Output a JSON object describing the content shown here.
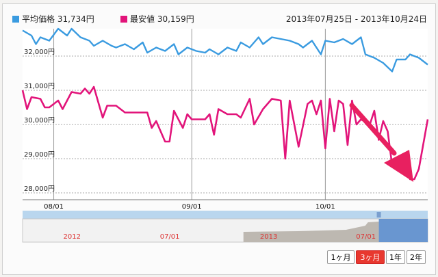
{
  "legend": [
    {
      "label": "平均価格 31,734円",
      "color": "#3a9be0"
    },
    {
      "label": "最安値 30,159円",
      "color": "#e2147a"
    }
  ],
  "date_range": "2013年07月25日 - 2013年10月24日",
  "range_buttons": [
    {
      "label": "1ヶ月",
      "active": false
    },
    {
      "label": "3ヶ月",
      "active": true
    },
    {
      "label": "1年",
      "active": false
    },
    {
      "label": "2年",
      "active": false
    }
  ],
  "annotation_color": "#e82060",
  "chart_data": {
    "type": "line",
    "ylim": [
      27800,
      32800
    ],
    "xlim": [
      "2013-07-25",
      "2013-10-24"
    ],
    "yticks": [
      {
        "value": 32000,
        "label": "32,000円"
      },
      {
        "value": 31000,
        "label": "31,000円"
      },
      {
        "value": 30000,
        "label": "30,000円"
      },
      {
        "value": 29000,
        "label": "29,000円"
      },
      {
        "value": 28000,
        "label": "28,000円"
      }
    ],
    "xticks": [
      {
        "date": "2013-08-01",
        "label": "08/01"
      },
      {
        "date": "2013-09-01",
        "label": "09/01"
      },
      {
        "date": "2013-10-01",
        "label": "10/01"
      }
    ],
    "grid": true,
    "series": [
      {
        "name": "平均価格",
        "color": "#3a9be0",
        "points": [
          [
            "2013-07-25",
            32750
          ],
          [
            "2013-07-27",
            32600
          ],
          [
            "2013-07-28",
            32350
          ],
          [
            "2013-07-29",
            32550
          ],
          [
            "2013-07-31",
            32450
          ],
          [
            "2013-08-02",
            32800
          ],
          [
            "2013-08-04",
            32600
          ],
          [
            "2013-08-05",
            32800
          ],
          [
            "2013-08-07",
            32550
          ],
          [
            "2013-08-09",
            32450
          ],
          [
            "2013-08-10",
            32300
          ],
          [
            "2013-08-12",
            32450
          ],
          [
            "2013-08-14",
            32300
          ],
          [
            "2013-08-15",
            32250
          ],
          [
            "2013-08-17",
            32350
          ],
          [
            "2013-08-19",
            32200
          ],
          [
            "2013-08-21",
            32400
          ],
          [
            "2013-08-22",
            32100
          ],
          [
            "2013-08-24",
            32250
          ],
          [
            "2013-08-26",
            32150
          ],
          [
            "2013-08-28",
            32350
          ],
          [
            "2013-08-29",
            32050
          ],
          [
            "2013-08-31",
            32250
          ],
          [
            "2013-09-02",
            32150
          ],
          [
            "2013-09-04",
            32100
          ],
          [
            "2013-09-05",
            32200
          ],
          [
            "2013-09-07",
            32050
          ],
          [
            "2013-09-09",
            32250
          ],
          [
            "2013-09-11",
            32150
          ],
          [
            "2013-09-12",
            32400
          ],
          [
            "2013-09-14",
            32250
          ],
          [
            "2013-09-16",
            32550
          ],
          [
            "2013-09-17",
            32350
          ],
          [
            "2013-09-19",
            32550
          ],
          [
            "2013-09-21",
            32500
          ],
          [
            "2013-09-23",
            32450
          ],
          [
            "2013-09-25",
            32350
          ],
          [
            "2013-09-26",
            32250
          ],
          [
            "2013-09-28",
            32450
          ],
          [
            "2013-09-30",
            32050
          ],
          [
            "2013-10-01",
            32450
          ],
          [
            "2013-10-03",
            32400
          ],
          [
            "2013-10-05",
            32500
          ],
          [
            "2013-10-07",
            32350
          ],
          [
            "2013-10-09",
            32550
          ],
          [
            "2013-10-10",
            32050
          ],
          [
            "2013-10-12",
            31950
          ],
          [
            "2013-10-14",
            31800
          ],
          [
            "2013-10-16",
            31550
          ],
          [
            "2013-10-17",
            31900
          ],
          [
            "2013-10-19",
            31900
          ],
          [
            "2013-10-20",
            32050
          ],
          [
            "2013-10-22",
            31950
          ],
          [
            "2013-10-24",
            31750
          ]
        ]
      },
      {
        "name": "最安値",
        "color": "#e2147a",
        "points": [
          [
            "2013-07-25",
            31000
          ],
          [
            "2013-07-26",
            30450
          ],
          [
            "2013-07-27",
            30800
          ],
          [
            "2013-07-29",
            30750
          ],
          [
            "2013-07-30",
            30500
          ],
          [
            "2013-07-31",
            30500
          ],
          [
            "2013-08-02",
            30700
          ],
          [
            "2013-08-03",
            30450
          ],
          [
            "2013-08-05",
            30950
          ],
          [
            "2013-08-07",
            30900
          ],
          [
            "2013-08-08",
            31050
          ],
          [
            "2013-08-09",
            30900
          ],
          [
            "2013-08-10",
            31100
          ],
          [
            "2013-08-12",
            30200
          ],
          [
            "2013-08-13",
            30550
          ],
          [
            "2013-08-15",
            30550
          ],
          [
            "2013-08-17",
            30350
          ],
          [
            "2013-08-19",
            30350
          ],
          [
            "2013-08-22",
            30350
          ],
          [
            "2013-08-23",
            29900
          ],
          [
            "2013-08-24",
            30100
          ],
          [
            "2013-08-26",
            29500
          ],
          [
            "2013-08-27",
            29500
          ],
          [
            "2013-08-28",
            30400
          ],
          [
            "2013-08-30",
            29900
          ],
          [
            "2013-08-31",
            30300
          ],
          [
            "2013-09-01",
            30150
          ],
          [
            "2013-09-04",
            30150
          ],
          [
            "2013-09-05",
            30300
          ],
          [
            "2013-09-06",
            29700
          ],
          [
            "2013-09-07",
            30450
          ],
          [
            "2013-09-09",
            30300
          ],
          [
            "2013-09-11",
            30300
          ],
          [
            "2013-09-12",
            30200
          ],
          [
            "2013-09-14",
            30750
          ],
          [
            "2013-09-15",
            30000
          ],
          [
            "2013-09-17",
            30450
          ],
          [
            "2013-09-19",
            30750
          ],
          [
            "2013-09-21",
            30700
          ],
          [
            "2013-09-22",
            29000
          ],
          [
            "2013-09-23",
            30700
          ],
          [
            "2013-09-25",
            29350
          ],
          [
            "2013-09-27",
            30600
          ],
          [
            "2013-09-28",
            30700
          ],
          [
            "2013-09-29",
            30300
          ],
          [
            "2013-09-30",
            30700
          ],
          [
            "2013-10-01",
            29300
          ],
          [
            "2013-10-02",
            30750
          ],
          [
            "2013-10-03",
            29800
          ],
          [
            "2013-10-04",
            30700
          ],
          [
            "2013-10-05",
            30600
          ],
          [
            "2013-10-06",
            29400
          ],
          [
            "2013-10-07",
            30700
          ],
          [
            "2013-10-08",
            30000
          ],
          [
            "2013-10-09",
            30150
          ],
          [
            "2013-10-11",
            30000
          ],
          [
            "2013-10-12",
            30400
          ],
          [
            "2013-10-13",
            29550
          ],
          [
            "2013-10-14",
            30100
          ],
          [
            "2013-10-15",
            29800
          ],
          [
            "2013-10-16",
            28800
          ],
          [
            "2013-10-17",
            29000
          ],
          [
            "2013-10-19",
            29000
          ],
          [
            "2013-10-20",
            28400
          ],
          [
            "2013-10-21",
            28400
          ],
          [
            "2013-10-22",
            28700
          ],
          [
            "2013-10-24",
            30150
          ]
        ]
      }
    ]
  },
  "navigator": {
    "labels": [
      {
        "date": "2012-01-01",
        "label": "2012"
      },
      {
        "date": "2012-07-01",
        "label": "07/01"
      },
      {
        "date": "2013-01-01",
        "label": "2013"
      },
      {
        "date": "2013-07-01",
        "label": "07/01"
      }
    ],
    "selection_start": "2013-07-25",
    "selection_end": "2013-10-24",
    "colors": {
      "bar": "#b9d6ee",
      "selection": "#5a8ccc",
      "history": "#bdb8b1",
      "label": "#d33"
    }
  }
}
